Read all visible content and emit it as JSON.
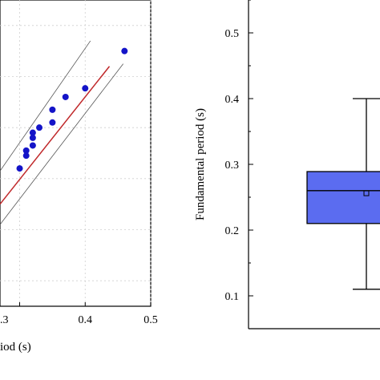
{
  "chart_data": [
    {
      "type": "scatter",
      "xlabel": "iod (s)",
      "ylabel": "",
      "xlim": [
        0.27,
        0.5
      ],
      "ylim": [
        -0.05,
        0.55
      ],
      "xticks": [
        0.3,
        0.4,
        0.5
      ],
      "xtick_labels": [
        ".3",
        "0.4",
        "0.5"
      ],
      "colors": {
        "points": "#1414c8",
        "fit": "#c0282a",
        "bounds": "#555555"
      },
      "points": [
        {
          "x": 0.3,
          "y": 0.22
        },
        {
          "x": 0.31,
          "y": 0.245
        },
        {
          "x": 0.31,
          "y": 0.255
        },
        {
          "x": 0.32,
          "y": 0.265
        },
        {
          "x": 0.32,
          "y": 0.28
        },
        {
          "x": 0.32,
          "y": 0.29
        },
        {
          "x": 0.33,
          "y": 0.3
        },
        {
          "x": 0.35,
          "y": 0.31
        },
        {
          "x": 0.35,
          "y": 0.335
        },
        {
          "x": 0.37,
          "y": 0.36
        },
        {
          "x": 0.4,
          "y": 0.377
        },
        {
          "x": 0.46,
          "y": 0.45
        }
      ],
      "fit_line": [
        {
          "x": 0.27,
          "y": 0.15
        },
        {
          "x": 0.437,
          "y": 0.42
        }
      ],
      "upper_bound": [
        {
          "x": 0.27,
          "y": 0.215
        },
        {
          "x": 0.408,
          "y": 0.47
        }
      ],
      "lower_bound": [
        {
          "x": 0.27,
          "y": 0.11
        },
        {
          "x": 0.458,
          "y": 0.425
        }
      ]
    },
    {
      "type": "box",
      "ylabel": "Fundamental period (s)",
      "xlabel": "",
      "ylim": [
        0.05,
        0.55
      ],
      "yticks": [
        0.1,
        0.2,
        0.3,
        0.4,
        0.5
      ],
      "ytick_labels": [
        "0.1",
        "0.2",
        "0.3",
        "0.4",
        "0.5"
      ],
      "colors": {
        "box": "#5b6cf0",
        "stroke": "#000000"
      },
      "stats": {
        "min": 0.11,
        "q1": 0.21,
        "median": 0.26,
        "mean": 0.256,
        "q3": 0.289,
        "max": 0.4
      }
    }
  ]
}
